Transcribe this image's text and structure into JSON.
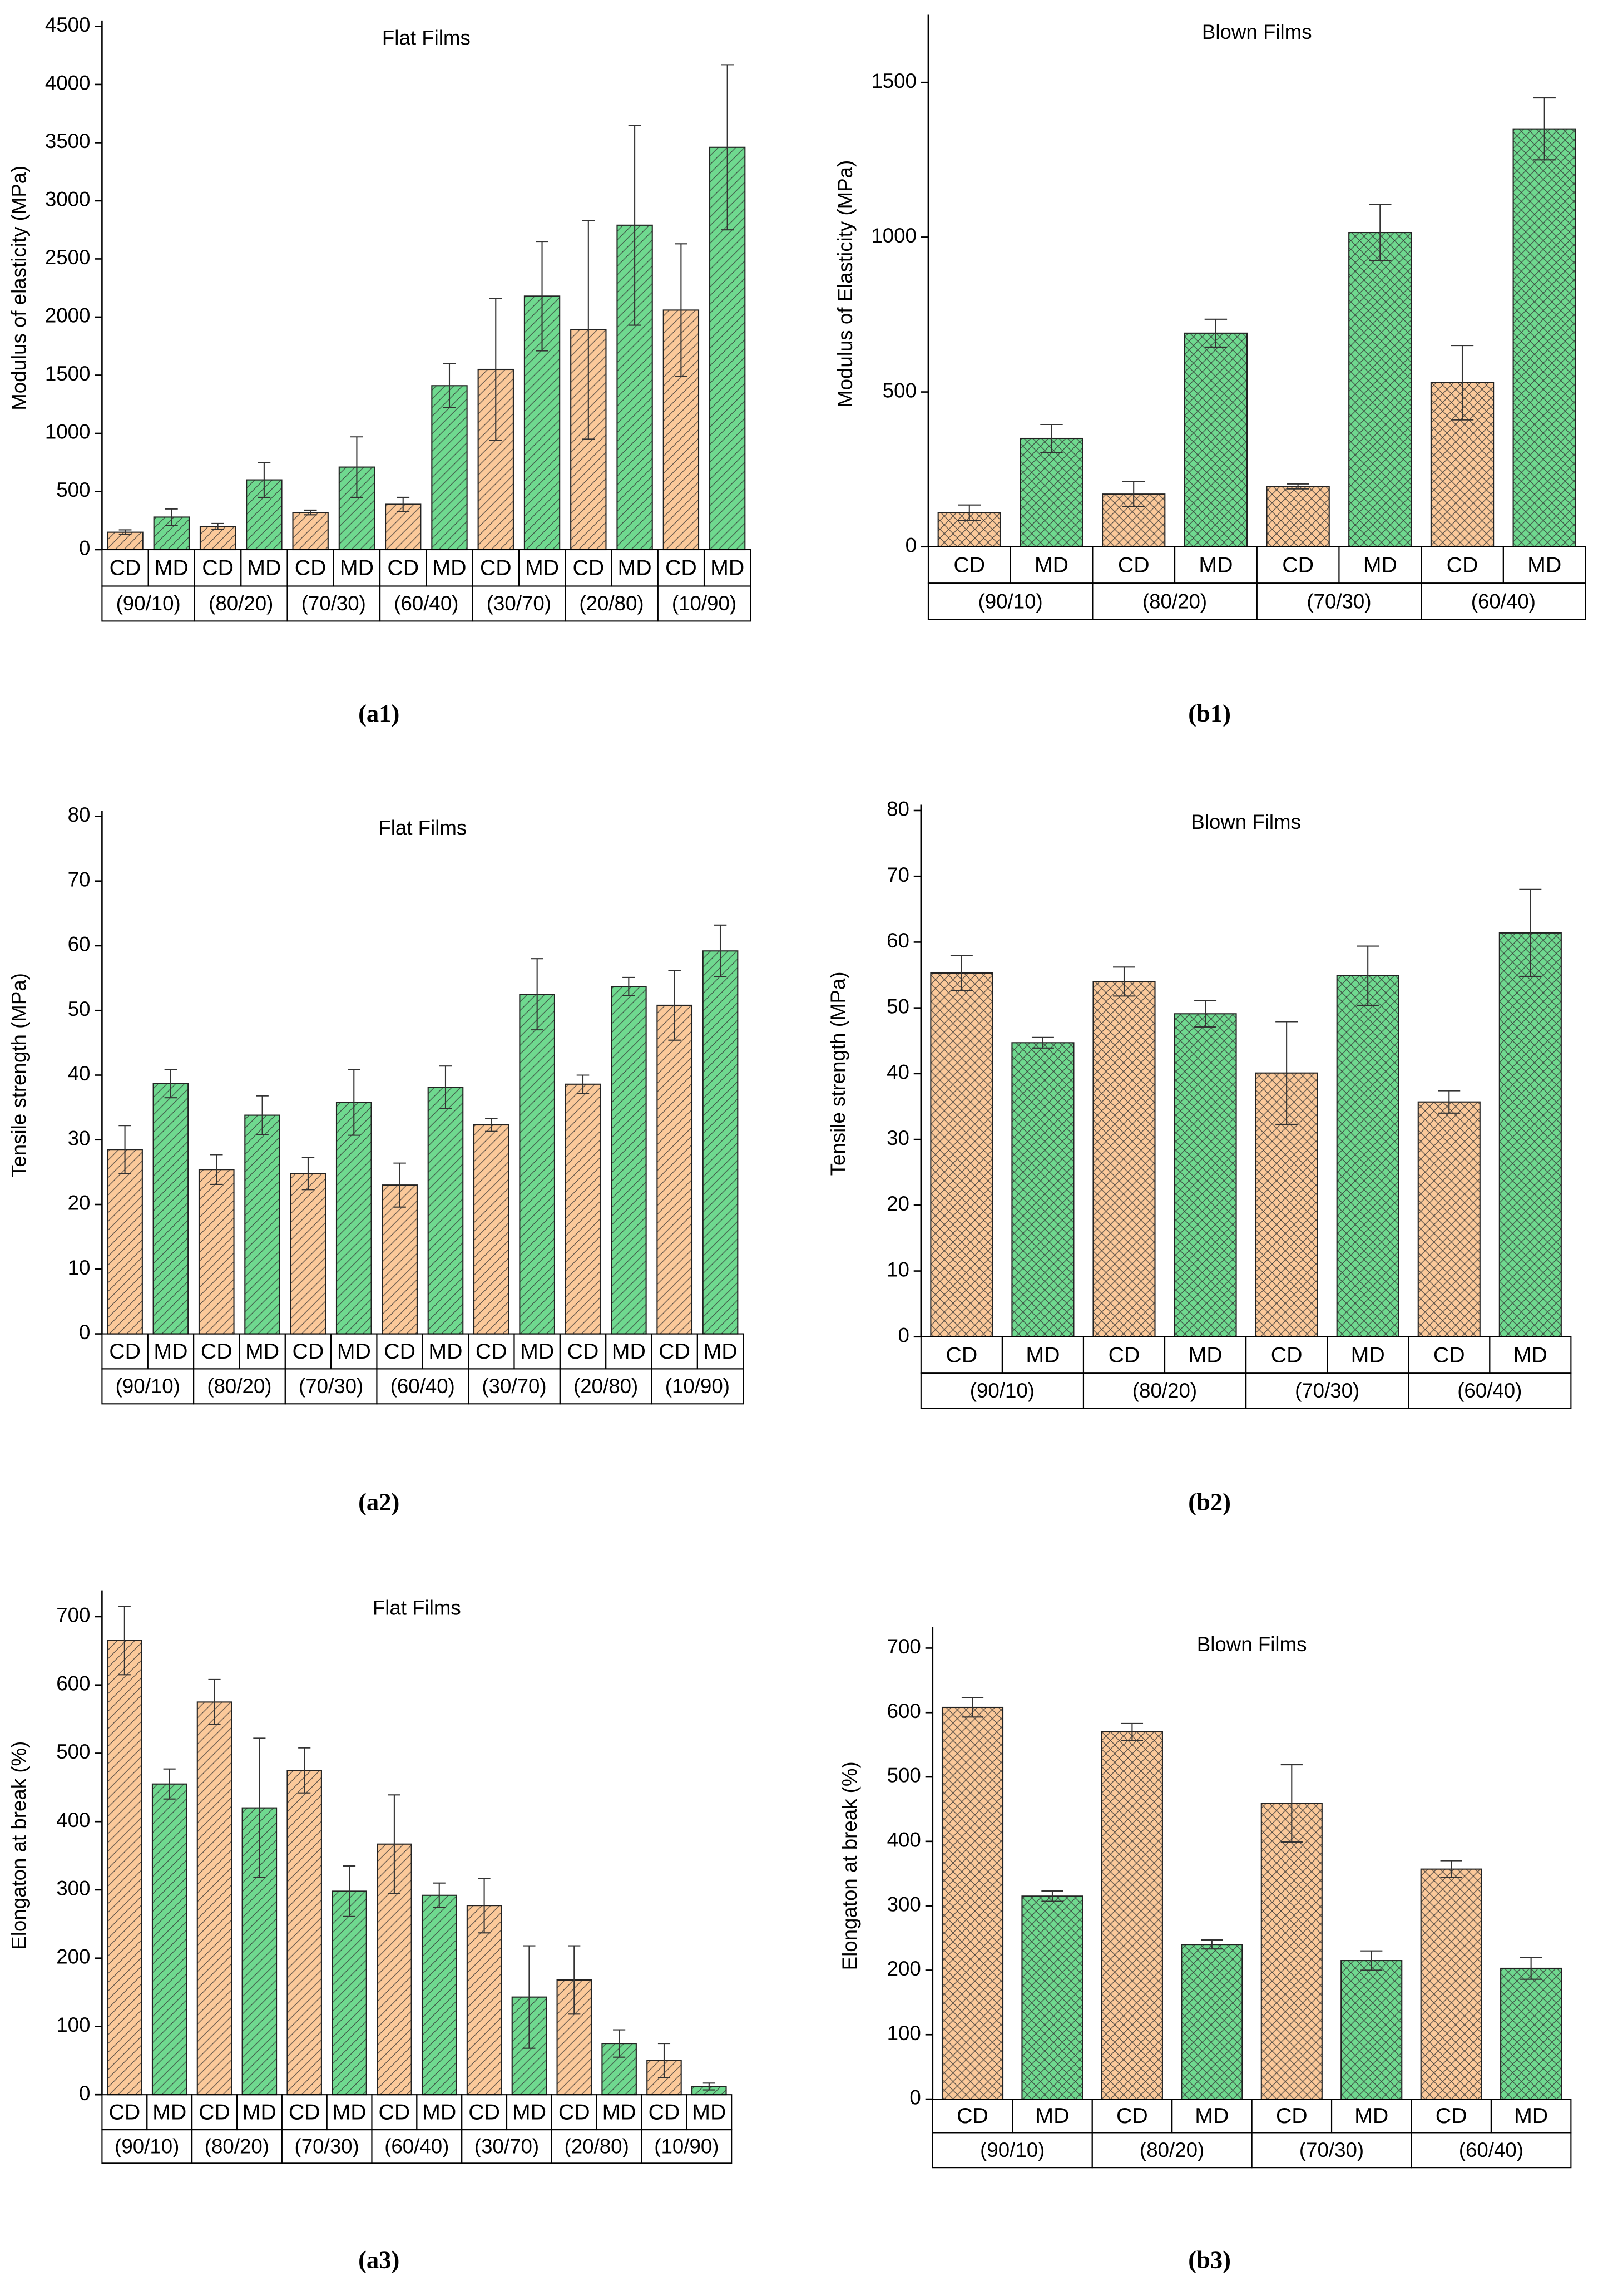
{
  "chart_data": [
    {
      "type": "bar",
      "title": "Flat Films",
      "y_label": "Modulus of elasticity (MPa)",
      "caption": "(a1)",
      "hatch": "diagonal",
      "groups": [
        "(90/10)",
        "(80/20)",
        "(70/30)",
        "(60/40)",
        "(30/70)",
        "(20/80)",
        "(10/90)"
      ],
      "series": [
        {
          "name": "CD",
          "color": "#fbc99a",
          "values": [
            150,
            200,
            320,
            390,
            1550,
            1890,
            2060
          ],
          "errors": [
            20,
            25,
            20,
            60,
            610,
            940,
            570
          ]
        },
        {
          "name": "MD",
          "color": "#6fd98f",
          "values": [
            280,
            600,
            710,
            1410,
            2180,
            2790,
            3460
          ],
          "errors": [
            70,
            150,
            260,
            190,
            470,
            860,
            710
          ]
        }
      ],
      "ylim": [
        0,
        4500
      ],
      "yticks": [
        0,
        500,
        1000,
        1500,
        2000,
        2500,
        3000,
        3500,
        4000,
        4500
      ]
    },
    {
      "type": "bar",
      "title": "Blown Films",
      "y_label": "Modulus of Elasticity (MPa)",
      "caption": "(b1)",
      "hatch": "cross",
      "groups": [
        "(90/10)",
        "(80/20)",
        "(70/30)",
        "(60/40)"
      ],
      "series": [
        {
          "name": "CD",
          "color": "#fbc99a",
          "values": [
            110,
            170,
            195,
            530
          ],
          "errors": [
            25,
            40,
            8,
            120
          ]
        },
        {
          "name": "MD",
          "color": "#6fd98f",
          "values": [
            350,
            690,
            1015,
            1350
          ],
          "errors": [
            45,
            45,
            90,
            100
          ]
        }
      ],
      "ylim": [
        0,
        1700
      ],
      "yticks": [
        0,
        500,
        1000,
        1500
      ]
    },
    {
      "type": "bar",
      "title": "Flat Films",
      "y_label": "Tensile strength (MPa)",
      "caption": "(a2)",
      "hatch": "diagonal",
      "groups": [
        "(90/10)",
        "(80/20)",
        "(70/30)",
        "(60/40)",
        "(30/70)",
        "(20/80)",
        "(10/90)"
      ],
      "series": [
        {
          "name": "CD",
          "color": "#fbc99a",
          "values": [
            28.5,
            25.4,
            24.8,
            23,
            32.3,
            38.6,
            50.8
          ],
          "errors": [
            3.7,
            2.3,
            2.5,
            3.4,
            1,
            1.4,
            5.4
          ]
        },
        {
          "name": "MD",
          "color": "#6fd98f",
          "values": [
            38.7,
            33.8,
            35.8,
            38.1,
            52.5,
            53.7,
            59.2
          ],
          "errors": [
            2.2,
            3,
            5.1,
            3.3,
            5.5,
            1.4,
            4
          ]
        }
      ],
      "ylim": [
        0,
        80
      ],
      "yticks": [
        0,
        10,
        20,
        30,
        40,
        50,
        60,
        70,
        80
      ]
    },
    {
      "type": "bar",
      "title": "Blown Films",
      "y_label": "Tensile strength (MPa)",
      "caption": "(b2)",
      "hatch": "cross",
      "groups": [
        "(90/10)",
        "(80/20)",
        "(70/30)",
        "(60/40)"
      ],
      "series": [
        {
          "name": "CD",
          "color": "#fbc99a",
          "values": [
            55.3,
            54,
            40.1,
            35.7
          ],
          "errors": [
            2.7,
            2.2,
            7.8,
            1.7
          ]
        },
        {
          "name": "MD",
          "color": "#6fd98f",
          "values": [
            44.7,
            49.1,
            54.9,
            61.4
          ],
          "errors": [
            0.8,
            2,
            4.5,
            6.6
          ]
        }
      ],
      "ylim": [
        0,
        80
      ],
      "yticks": [
        0,
        10,
        20,
        30,
        40,
        50,
        60,
        70,
        80
      ]
    },
    {
      "type": "bar",
      "title": "Flat Films",
      "y_label": "Elongaton at break (%)",
      "caption": "(a3)",
      "hatch": "diagonal",
      "groups": [
        "(90/10)",
        "(80/20)",
        "(70/30)",
        "(60/40)",
        "(30/70)",
        "(20/80)",
        "(10/90)"
      ],
      "series": [
        {
          "name": "CD",
          "color": "#fbc99a",
          "values": [
            665,
            575,
            475,
            367,
            277,
            168,
            50
          ],
          "errors": [
            50,
            33,
            33,
            72,
            40,
            50,
            25
          ]
        },
        {
          "name": "MD",
          "color": "#6fd98f",
          "values": [
            455,
            420,
            298,
            292,
            143,
            75,
            12
          ],
          "errors": [
            22,
            102,
            37,
            18,
            75,
            20,
            5
          ]
        }
      ],
      "ylim": [
        0,
        730
      ],
      "yticks": [
        0,
        100,
        200,
        300,
        400,
        500,
        600,
        700
      ]
    },
    {
      "type": "bar",
      "title": "Blown Films",
      "y_label": "Elongaton at break (%)",
      "caption": "(b3)",
      "hatch": "cross",
      "groups": [
        "(90/10)",
        "(80/20)",
        "(70/30)",
        "(60/40)"
      ],
      "series": [
        {
          "name": "CD",
          "color": "#fbc99a",
          "values": [
            608,
            570,
            459,
            357
          ],
          "errors": [
            15,
            13,
            60,
            13
          ]
        },
        {
          "name": "MD",
          "color": "#6fd98f",
          "values": [
            315,
            240,
            215,
            203
          ],
          "errors": [
            8,
            7,
            15,
            17
          ]
        }
      ],
      "ylim": [
        0,
        724
      ],
      "yticks": [
        0,
        100,
        200,
        300,
        400,
        500,
        600,
        700
      ]
    }
  ]
}
